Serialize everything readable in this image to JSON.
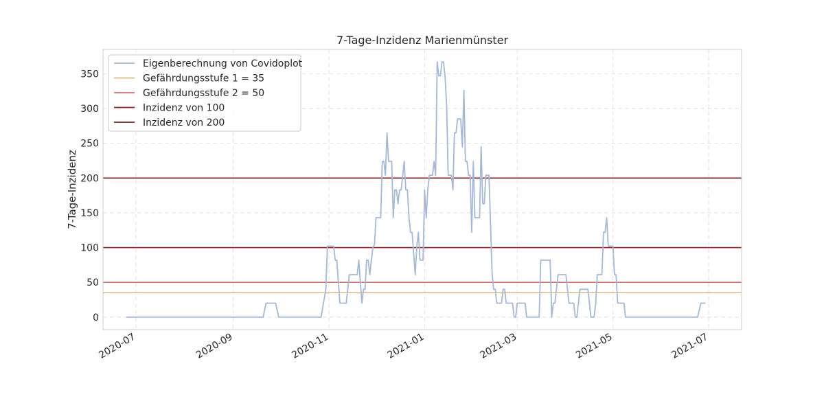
{
  "chart_data": {
    "type": "line",
    "title": "7-Tage-Inzidenz Marienmünster",
    "xlabel": "",
    "ylabel": "7-Tage-Inzidenz",
    "xlim": [
      "2020-06-10",
      "2021-07-22"
    ],
    "ylim": [
      -18,
      385
    ],
    "yticks": [
      0,
      50,
      100,
      150,
      200,
      250,
      300,
      350
    ],
    "xticks": [
      "2020-07-01",
      "2020-09-01",
      "2020-11-01",
      "2021-01-01",
      "2021-03-01",
      "2021-05-01",
      "2021-07-01"
    ],
    "xtick_labels": [
      "2020-07",
      "2020-09",
      "2020-11",
      "2021-01",
      "2021-03",
      "2021-05",
      "2021-07"
    ],
    "grid": true,
    "legend_position": "top-left",
    "colors": {
      "series": "#a4b8d8",
      "threshold35": "#dbba85",
      "threshold50": "#d96b6b",
      "threshold100": "#9b1c1c",
      "threshold200": "#7f1d1d"
    },
    "series": [
      {
        "name": "Eigenberechnung von Covidoplot",
        "points": [
          [
            "2020-06-25",
            0
          ],
          [
            "2020-09-20",
            0
          ],
          [
            "2020-09-22",
            20
          ],
          [
            "2020-09-28",
            20
          ],
          [
            "2020-09-30",
            0
          ],
          [
            "2020-10-27",
            0
          ],
          [
            "2020-10-30",
            40
          ],
          [
            "2020-10-31",
            102
          ],
          [
            "2020-11-04",
            102
          ],
          [
            "2020-11-05",
            82
          ],
          [
            "2020-11-06",
            82
          ],
          [
            "2020-11-08",
            20
          ],
          [
            "2020-11-12",
            20
          ],
          [
            "2020-11-14",
            61
          ],
          [
            "2020-11-19",
            61
          ],
          [
            "2020-11-20",
            82
          ],
          [
            "2020-11-22",
            20
          ],
          [
            "2020-11-23",
            40
          ],
          [
            "2020-11-24",
            40
          ],
          [
            "2020-11-25",
            82
          ],
          [
            "2020-11-26",
            82
          ],
          [
            "2020-11-27",
            61
          ],
          [
            "2020-11-29",
            100
          ],
          [
            "2020-11-30",
            104
          ],
          [
            "2020-12-01",
            143
          ],
          [
            "2020-12-04",
            143
          ],
          [
            "2020-12-05",
            224
          ],
          [
            "2020-12-06",
            224
          ],
          [
            "2020-12-07",
            204
          ],
          [
            "2020-12-08",
            265
          ],
          [
            "2020-12-09",
            224
          ],
          [
            "2020-12-11",
            224
          ],
          [
            "2020-12-12",
            143
          ],
          [
            "2020-12-13",
            183
          ],
          [
            "2020-12-14",
            183
          ],
          [
            "2020-12-15",
            163
          ],
          [
            "2020-12-16",
            183
          ],
          [
            "2020-12-17",
            183
          ],
          [
            "2020-12-19",
            224
          ],
          [
            "2020-12-20",
            183
          ],
          [
            "2020-12-21",
            183
          ],
          [
            "2020-12-22",
            143
          ],
          [
            "2020-12-23",
            122
          ],
          [
            "2020-12-24",
            122
          ],
          [
            "2020-12-26",
            61
          ],
          [
            "2020-12-27",
            102
          ],
          [
            "2020-12-28",
            122
          ],
          [
            "2020-12-29",
            82
          ],
          [
            "2020-12-31",
            82
          ],
          [
            "2021-01-01",
            183
          ],
          [
            "2021-01-02",
            143
          ],
          [
            "2021-01-03",
            183
          ],
          [
            "2021-01-04",
            204
          ],
          [
            "2021-01-06",
            204
          ],
          [
            "2021-01-07",
            224
          ],
          [
            "2021-01-08",
            204
          ],
          [
            "2021-01-09",
            367
          ],
          [
            "2021-01-10",
            347
          ],
          [
            "2021-01-11",
            347
          ],
          [
            "2021-01-12",
            367
          ],
          [
            "2021-01-13",
            367
          ],
          [
            "2021-01-14",
            347
          ],
          [
            "2021-01-15",
            306
          ],
          [
            "2021-01-16",
            204
          ],
          [
            "2021-01-18",
            204
          ],
          [
            "2021-01-19",
            183
          ],
          [
            "2021-01-20",
            265
          ],
          [
            "2021-01-21",
            265
          ],
          [
            "2021-01-22",
            285
          ],
          [
            "2021-01-24",
            285
          ],
          [
            "2021-01-25",
            245
          ],
          [
            "2021-01-26",
            326
          ],
          [
            "2021-01-27",
            224
          ],
          [
            "2021-01-28",
            224
          ],
          [
            "2021-01-29",
            204
          ],
          [
            "2021-01-30",
            204
          ],
          [
            "2021-01-31",
            122
          ],
          [
            "2021-02-01",
            224
          ],
          [
            "2021-02-02",
            143
          ],
          [
            "2021-02-05",
            143
          ],
          [
            "2021-02-06",
            245
          ],
          [
            "2021-02-07",
            163
          ],
          [
            "2021-02-08",
            163
          ],
          [
            "2021-02-09",
            204
          ],
          [
            "2021-02-11",
            204
          ],
          [
            "2021-02-13",
            61
          ],
          [
            "2021-02-14",
            40
          ],
          [
            "2021-02-15",
            40
          ],
          [
            "2021-02-16",
            20
          ],
          [
            "2021-02-19",
            20
          ],
          [
            "2021-02-20",
            40
          ],
          [
            "2021-02-21",
            40
          ],
          [
            "2021-02-22",
            20
          ],
          [
            "2021-02-26",
            20
          ],
          [
            "2021-02-27",
            0
          ],
          [
            "2021-02-28",
            0
          ],
          [
            "2021-03-01",
            20
          ],
          [
            "2021-03-06",
            20
          ],
          [
            "2021-03-07",
            0
          ],
          [
            "2021-03-15",
            0
          ],
          [
            "2021-03-16",
            82
          ],
          [
            "2021-03-22",
            82
          ],
          [
            "2021-03-23",
            0
          ],
          [
            "2021-03-24",
            20
          ],
          [
            "2021-03-25",
            20
          ],
          [
            "2021-03-27",
            61
          ],
          [
            "2021-04-01",
            61
          ],
          [
            "2021-04-03",
            20
          ],
          [
            "2021-04-06",
            20
          ],
          [
            "2021-04-07",
            0
          ],
          [
            "2021-04-08",
            0
          ],
          [
            "2021-04-10",
            40
          ],
          [
            "2021-04-15",
            40
          ],
          [
            "2021-04-16",
            20
          ],
          [
            "2021-04-17",
            0
          ],
          [
            "2021-04-19",
            0
          ],
          [
            "2021-04-20",
            20
          ],
          [
            "2021-04-21",
            61
          ],
          [
            "2021-04-24",
            61
          ],
          [
            "2021-04-25",
            122
          ],
          [
            "2021-04-26",
            122
          ],
          [
            "2021-04-27",
            143
          ],
          [
            "2021-04-28",
            102
          ],
          [
            "2021-05-01",
            102
          ],
          [
            "2021-05-02",
            61
          ],
          [
            "2021-05-03",
            61
          ],
          [
            "2021-05-04",
            20
          ],
          [
            "2021-05-08",
            20
          ],
          [
            "2021-05-09",
            0
          ],
          [
            "2021-06-24",
            0
          ],
          [
            "2021-06-26",
            20
          ],
          [
            "2021-06-29",
            20
          ]
        ]
      }
    ],
    "thresholds": [
      {
        "name": "Gefährdungsstufe 1 = 35",
        "value": 35,
        "color": "#dbba85"
      },
      {
        "name": "Gefährdungsstufe 2 = 50",
        "value": 50,
        "color": "#d96b6b"
      },
      {
        "name": "Inzidenz von 100",
        "value": 100,
        "color": "#9b1c1c"
      },
      {
        "name": "Inzidenz von 200",
        "value": 200,
        "color": "#7f1d1d"
      }
    ]
  }
}
